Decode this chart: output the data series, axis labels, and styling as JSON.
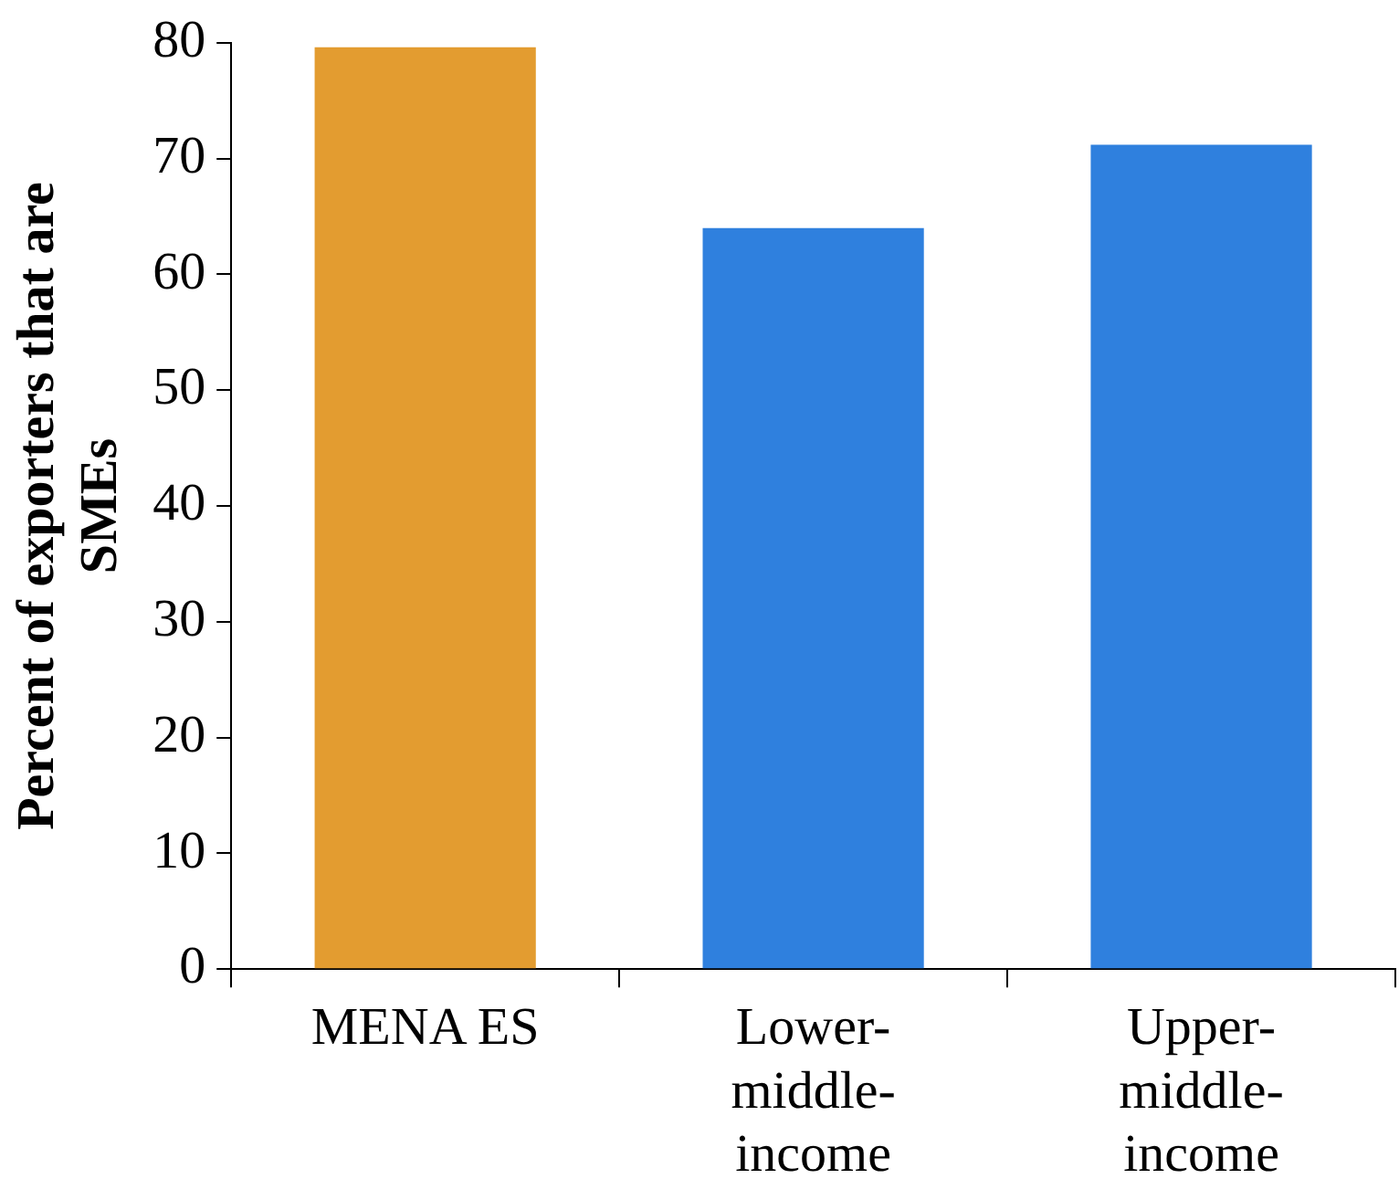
{
  "chart_data": {
    "type": "bar",
    "ylabel": "Percent of exporters that are SMEs",
    "categories": [
      "MENA ES",
      "Lower-middle-income",
      "Upper-middle-income"
    ],
    "values": [
      79.6,
      64,
      71.2
    ],
    "colors": [
      "#e39c30",
      "#2f80de",
      "#2f80de"
    ],
    "ylim": [
      0,
      80
    ],
    "yticks": [
      0,
      10,
      20,
      30,
      40,
      50,
      60,
      70,
      80
    ],
    "grid": false,
    "legend": false
  }
}
